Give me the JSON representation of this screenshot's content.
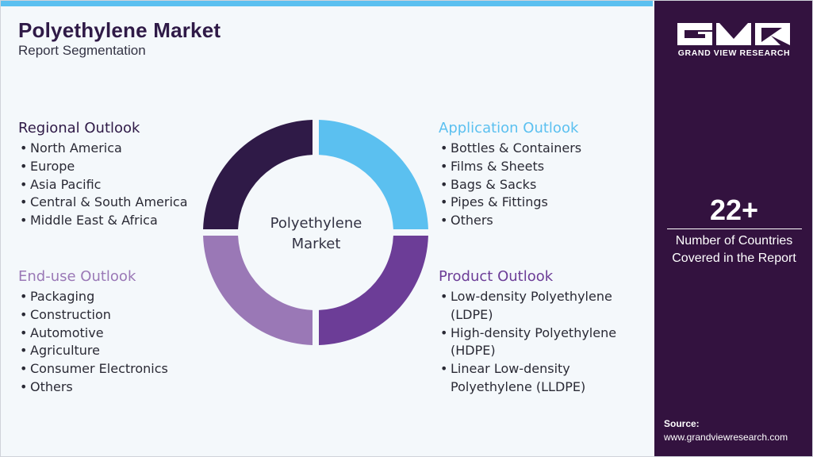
{
  "header": {
    "title": "Polyethylene Market",
    "subtitle": "Report Segmentation"
  },
  "center_label": "Polyethylene Market",
  "sections": {
    "regional": {
      "heading": "Regional Outlook",
      "color": "#2f1a47",
      "items": [
        "North America",
        "Europe",
        "Asia Pacific",
        "Central & South America",
        "Middle East & Africa"
      ]
    },
    "application": {
      "heading": "Application Outlook",
      "color": "#5bc0f0",
      "items": [
        "Bottles & Containers",
        "Films & Sheets",
        "Bags & Sacks",
        "Pipes & Fittings",
        "Others"
      ]
    },
    "enduse": {
      "heading": "End-use Outlook",
      "color": "#9a78b6",
      "items": [
        "Packaging",
        "Construction",
        "Automotive",
        "Agriculture",
        "Consumer Electronics",
        "Others"
      ]
    },
    "product": {
      "heading": "Product Outlook",
      "color": "#6c3d97",
      "items": [
        "Low-density Polyethylene",
        "(LDPE)",
        "High-density Polyethylene",
        "(HDPE)",
        "Linear Low-density",
        "Polyethylene (LLDPE)"
      ]
    }
  },
  "sidebar": {
    "brand": "GRAND VIEW RESEARCH",
    "stat_value": "22+",
    "stat_line1": "Number of Countries",
    "stat_line2": "Covered in the Report",
    "source_label": "Source:",
    "source_url": "www.grandviewresearch.com"
  },
  "colors": {
    "accent_blue": "#5bc0f0",
    "dark_purple": "#33123f",
    "segment_dark": "#2f1a47",
    "segment_light_purple": "#9a78b6",
    "segment_purple": "#6c3d97"
  }
}
